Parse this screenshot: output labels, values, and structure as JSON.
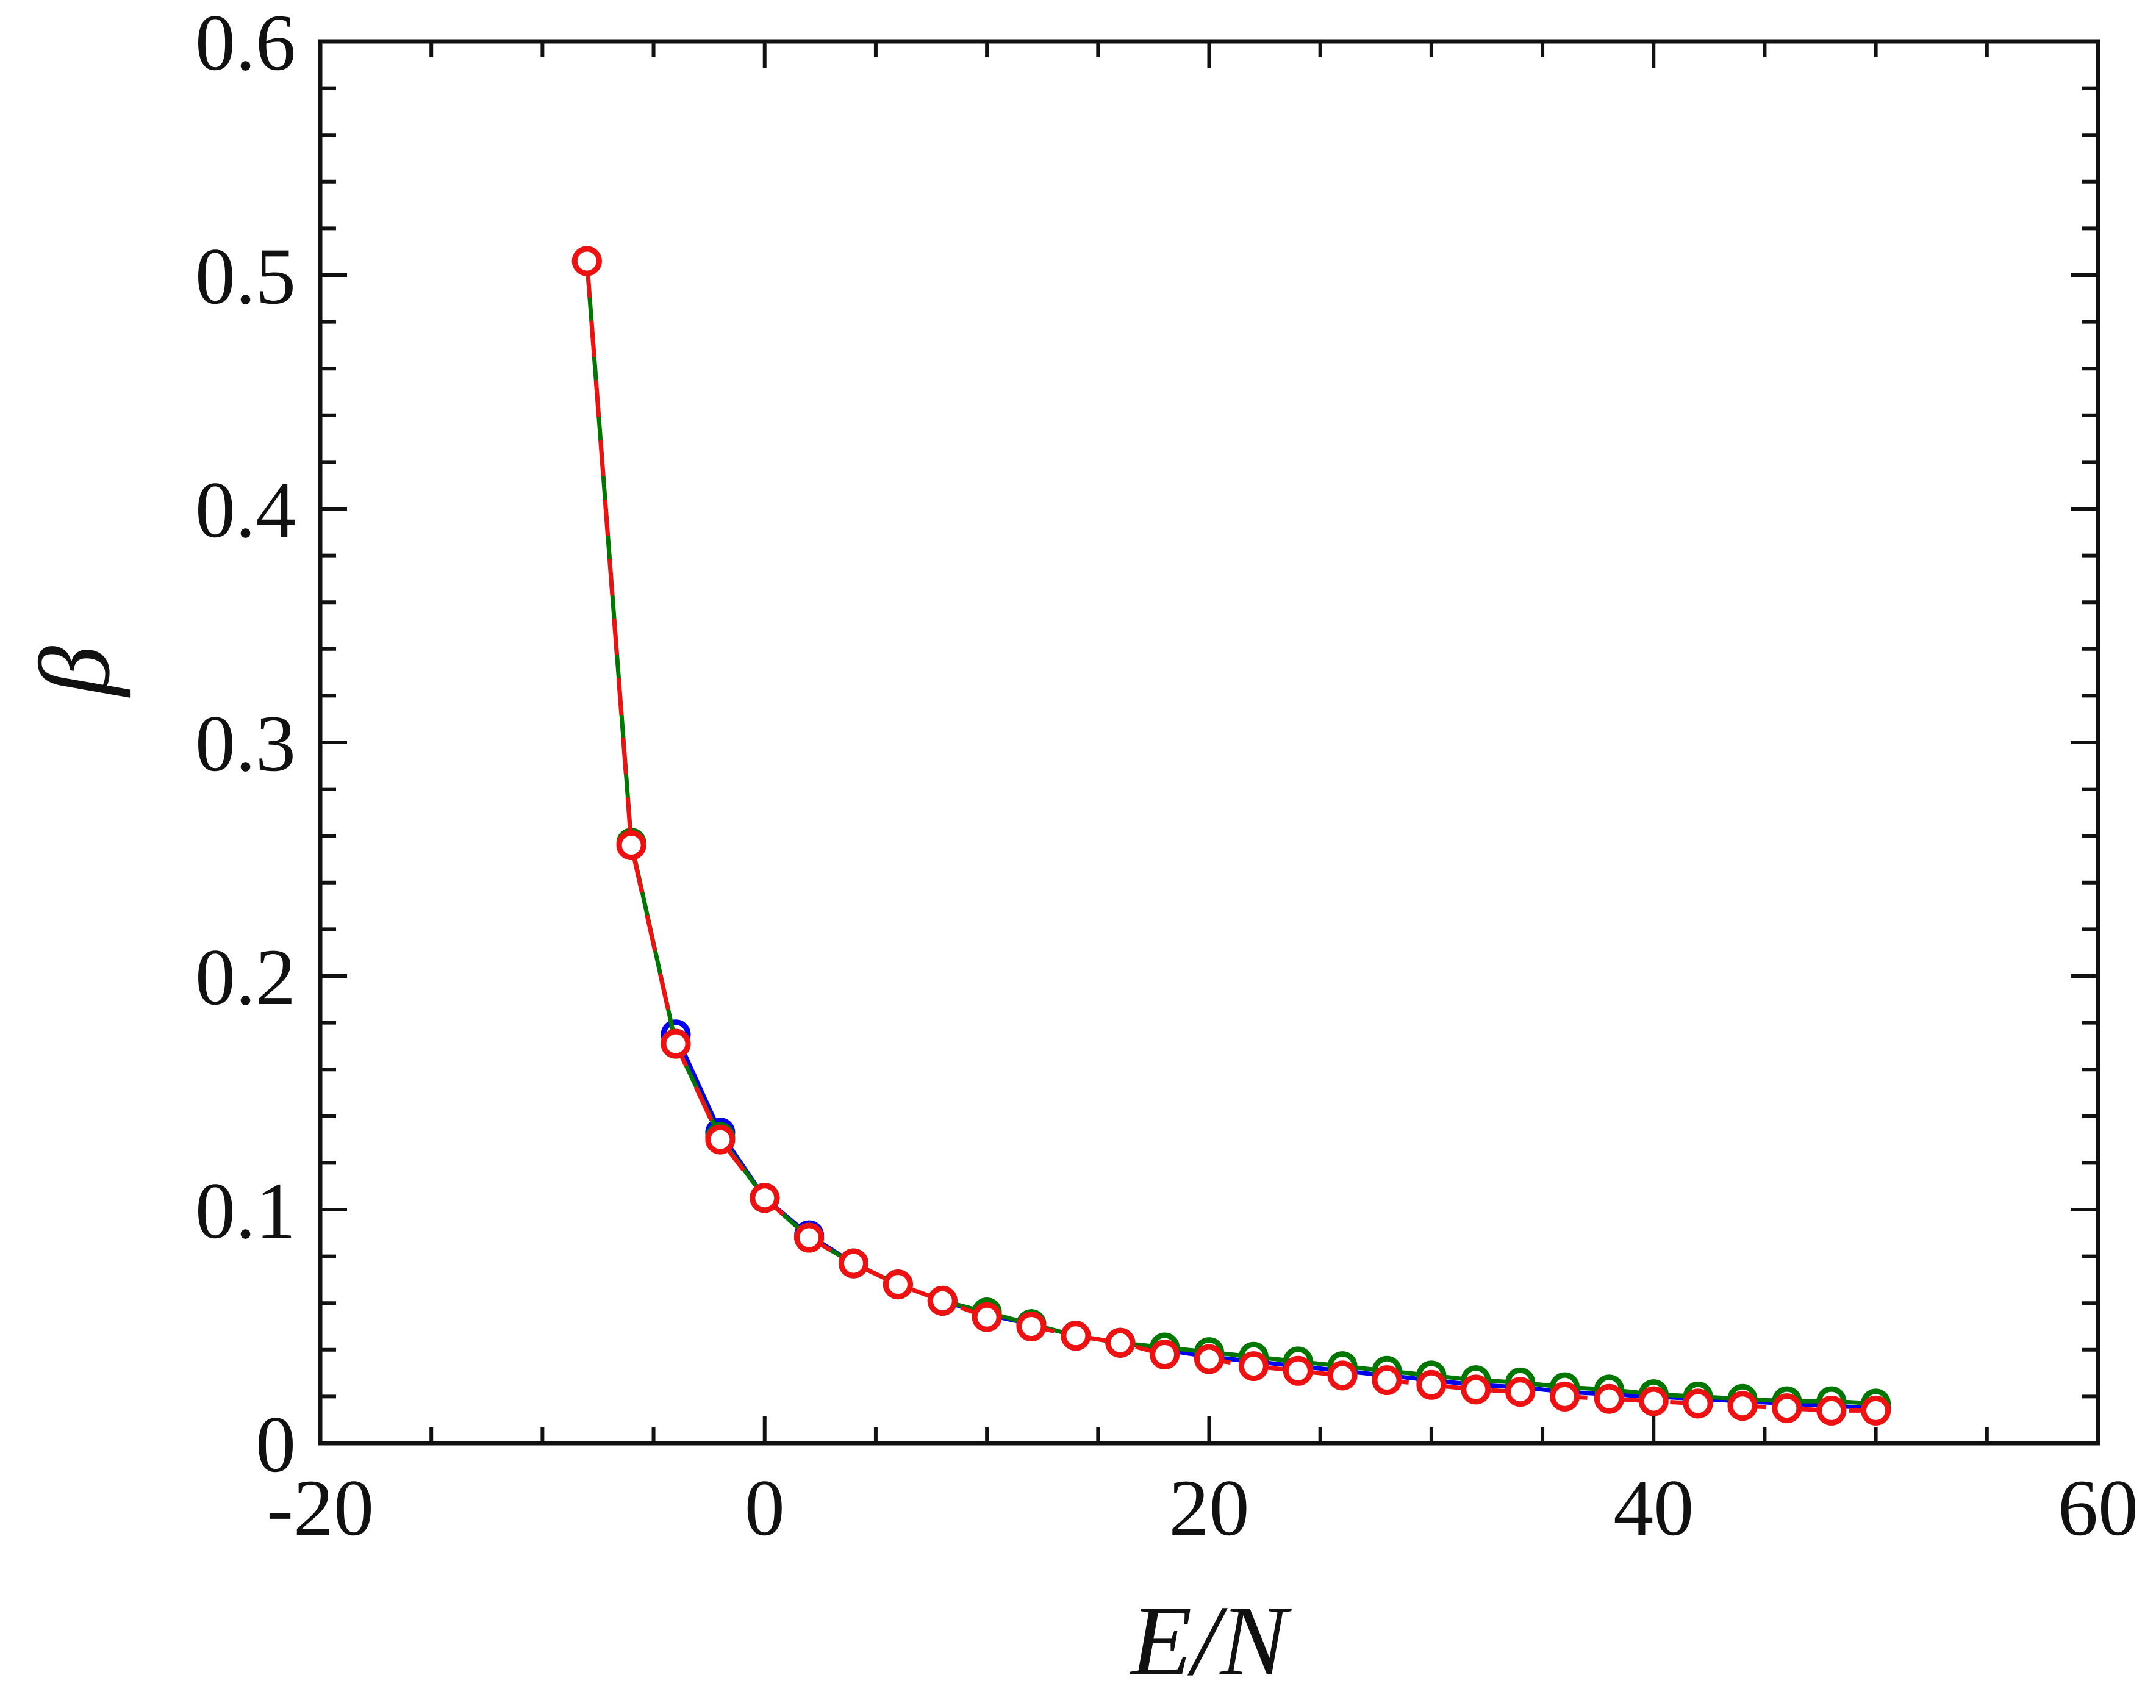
{
  "chart_data": {
    "type": "line",
    "title": "",
    "xlabel": "E/N",
    "ylabel": "β",
    "xlim": [
      -20,
      60
    ],
    "ylim": [
      0,
      0.6
    ],
    "xticks": [
      -20,
      0,
      20,
      40,
      60
    ],
    "xtick_labels": [
      "-20",
      "0",
      "20",
      "40",
      "60"
    ],
    "yticks": [
      0,
      0.1,
      0.2,
      0.3,
      0.4,
      0.5,
      0.6
    ],
    "ytick_labels": [
      "0",
      "0.1",
      "0.2",
      "0.3",
      "0.4",
      "0.5",
      "0.6"
    ],
    "grid": false,
    "legend": "none",
    "series": [
      {
        "name": "blue",
        "color": "#0000ee",
        "line_style": "solid",
        "marker": "open-circle",
        "x": [
          -4,
          -2,
          0,
          2,
          4,
          6,
          8,
          10,
          12,
          14,
          16,
          18,
          20,
          22,
          24,
          26,
          28,
          30,
          32,
          34,
          36,
          38,
          40,
          42,
          44,
          46,
          48,
          50
        ],
        "y": [
          0.175,
          0.133,
          0.105,
          0.089,
          0.077,
          0.068,
          0.061,
          0.055,
          0.051,
          0.046,
          0.043,
          0.04,
          0.037,
          0.035,
          0.033,
          0.031,
          0.029,
          0.027,
          0.025,
          0.024,
          0.022,
          0.021,
          0.02,
          0.019,
          0.018,
          0.017,
          0.016,
          0.015
        ]
      },
      {
        "name": "green",
        "color": "#007700",
        "line_style": "solid",
        "marker": "open-circle",
        "x": [
          -8,
          -6,
          -4,
          -2,
          0,
          2,
          4,
          6,
          8,
          10,
          12,
          14,
          16,
          18,
          20,
          22,
          24,
          26,
          28,
          30,
          32,
          34,
          36,
          38,
          40,
          42,
          44,
          46,
          48,
          50
        ],
        "y": [
          0.506,
          0.257,
          0.171,
          0.131,
          0.105,
          0.088,
          0.077,
          0.068,
          0.061,
          0.056,
          0.051,
          0.046,
          0.043,
          0.041,
          0.039,
          0.037,
          0.035,
          0.033,
          0.031,
          0.029,
          0.027,
          0.026,
          0.024,
          0.023,
          0.021,
          0.02,
          0.019,
          0.018,
          0.018,
          0.017
        ]
      },
      {
        "name": "red",
        "color": "#ee1111",
        "line_style": "dashed",
        "marker": "open-circle",
        "x": [
          -8,
          -6,
          -4,
          -2,
          0,
          2,
          4,
          6,
          8,
          10,
          12,
          14,
          16,
          18,
          20,
          22,
          24,
          26,
          28,
          30,
          32,
          34,
          36,
          38,
          40,
          42,
          44,
          46,
          48,
          50
        ],
        "y": [
          0.506,
          0.256,
          0.171,
          0.13,
          0.105,
          0.088,
          0.077,
          0.068,
          0.061,
          0.054,
          0.05,
          0.046,
          0.043,
          0.038,
          0.036,
          0.033,
          0.031,
          0.029,
          0.027,
          0.025,
          0.023,
          0.022,
          0.02,
          0.019,
          0.018,
          0.017,
          0.016,
          0.015,
          0.014,
          0.014
        ]
      }
    ]
  }
}
